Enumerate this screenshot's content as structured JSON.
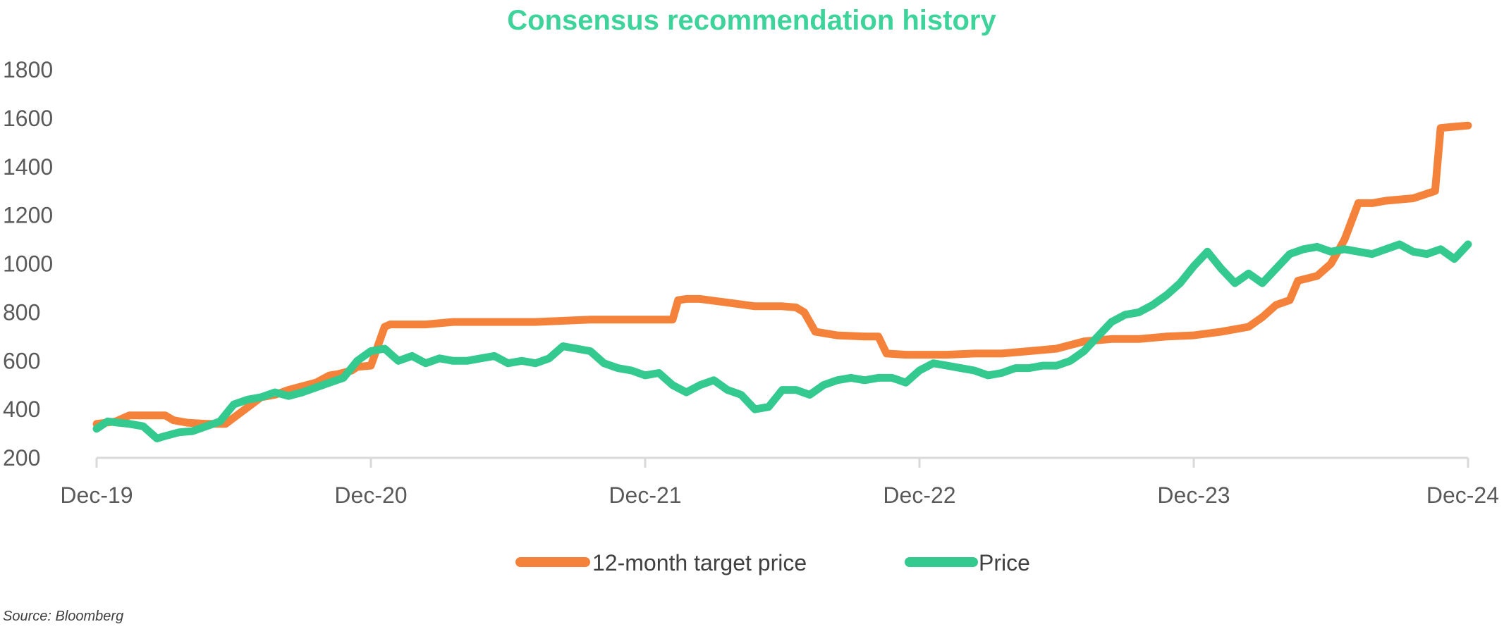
{
  "chart_data": {
    "type": "line",
    "title": "Consensus recommendation history",
    "xlabel": "",
    "ylabel": "",
    "x_ticks": [
      "Dec-19",
      "Dec-20",
      "Dec-21",
      "Dec-22",
      "Dec-23",
      "Dec-24"
    ],
    "xlim": [
      0,
      5
    ],
    "ylim": [
      200,
      1800
    ],
    "y_ticks": [
      200,
      400,
      600,
      800,
      1000,
      1200,
      1400,
      1600,
      1800
    ],
    "grid": false,
    "legend_position": "bottom-center",
    "series": [
      {
        "name": "12-month target price",
        "color": "#F5823A",
        "x": [
          0,
          0.07,
          0.12,
          0.25,
          0.28,
          0.33,
          0.4,
          0.47,
          0.6,
          0.65,
          0.7,
          0.8,
          0.85,
          0.88,
          0.93,
          0.95,
          1.0,
          1.05,
          1.07,
          1.1,
          1.2,
          1.3,
          1.4,
          1.6,
          1.8,
          1.9,
          2.0,
          2.1,
          2.12,
          2.15,
          2.2,
          2.3,
          2.4,
          2.5,
          2.55,
          2.58,
          2.62,
          2.7,
          2.8,
          2.85,
          2.88,
          2.95,
          3.0,
          3.1,
          3.2,
          3.3,
          3.4,
          3.5,
          3.6,
          3.65,
          3.7,
          3.8,
          3.9,
          4.0,
          4.1,
          4.2,
          4.25,
          4.3,
          4.35,
          4.38,
          4.45,
          4.5,
          4.55,
          4.6,
          4.65,
          4.7,
          4.8,
          4.88,
          4.9,
          4.95,
          5.0
        ],
        "values": [
          340,
          350,
          375,
          375,
          355,
          345,
          340,
          340,
          450,
          460,
          480,
          510,
          540,
          545,
          560,
          575,
          580,
          740,
          750,
          750,
          750,
          760,
          760,
          760,
          770,
          770,
          770,
          770,
          850,
          855,
          855,
          840,
          825,
          825,
          820,
          800,
          720,
          705,
          700,
          700,
          630,
          625,
          625,
          625,
          630,
          630,
          640,
          650,
          680,
          685,
          690,
          690,
          700,
          705,
          720,
          740,
          780,
          830,
          850,
          930,
          950,
          1000,
          1100,
          1250,
          1250,
          1260,
          1270,
          1300,
          1560,
          1565,
          1570
        ]
      },
      {
        "name": "Price",
        "color": "#34C98E",
        "x": [
          0,
          0.04,
          0.08,
          0.12,
          0.17,
          0.22,
          0.25,
          0.3,
          0.35,
          0.4,
          0.45,
          0.5,
          0.55,
          0.6,
          0.65,
          0.7,
          0.75,
          0.8,
          0.85,
          0.9,
          0.95,
          1.0,
          1.05,
          1.08,
          1.1,
          1.15,
          1.2,
          1.25,
          1.3,
          1.35,
          1.4,
          1.45,
          1.5,
          1.55,
          1.6,
          1.65,
          1.7,
          1.75,
          1.8,
          1.85,
          1.9,
          1.95,
          2.0,
          2.05,
          2.1,
          2.15,
          2.2,
          2.25,
          2.3,
          2.35,
          2.4,
          2.45,
          2.5,
          2.55,
          2.6,
          2.65,
          2.7,
          2.75,
          2.8,
          2.85,
          2.9,
          2.95,
          3.0,
          3.05,
          3.1,
          3.15,
          3.2,
          3.25,
          3.3,
          3.35,
          3.4,
          3.45,
          3.5,
          3.55,
          3.6,
          3.65,
          3.7,
          3.75,
          3.8,
          3.85,
          3.9,
          3.95,
          4.0,
          4.05,
          4.1,
          4.15,
          4.2,
          4.25,
          4.3,
          4.35,
          4.4,
          4.45,
          4.5,
          4.55,
          4.6,
          4.65,
          4.7,
          4.75,
          4.8,
          4.85,
          4.9,
          4.95,
          5.0
        ],
        "values": [
          320,
          350,
          345,
          340,
          330,
          280,
          290,
          305,
          310,
          330,
          350,
          420,
          440,
          450,
          470,
          455,
          470,
          490,
          510,
          530,
          600,
          640,
          650,
          620,
          600,
          620,
          590,
          610,
          600,
          600,
          610,
          620,
          590,
          600,
          590,
          610,
          660,
          650,
          640,
          590,
          570,
          560,
          540,
          550,
          500,
          470,
          500,
          520,
          480,
          460,
          400,
          410,
          480,
          480,
          460,
          500,
          520,
          530,
          520,
          530,
          530,
          510,
          560,
          590,
          580,
          570,
          560,
          540,
          550,
          570,
          570,
          580,
          580,
          600,
          640,
          700,
          760,
          790,
          800,
          830,
          870,
          920,
          990,
          1050,
          980,
          920,
          960,
          920,
          980,
          1040,
          1060,
          1070,
          1050,
          1060,
          1050,
          1040,
          1060,
          1080,
          1050,
          1040,
          1060,
          1020,
          1080
        ]
      }
    ],
    "annotations": []
  },
  "footer": {
    "source": "Source: Bloomberg"
  },
  "colors": {
    "title": "#3DD39A",
    "axis": "#D9D9D9"
  }
}
